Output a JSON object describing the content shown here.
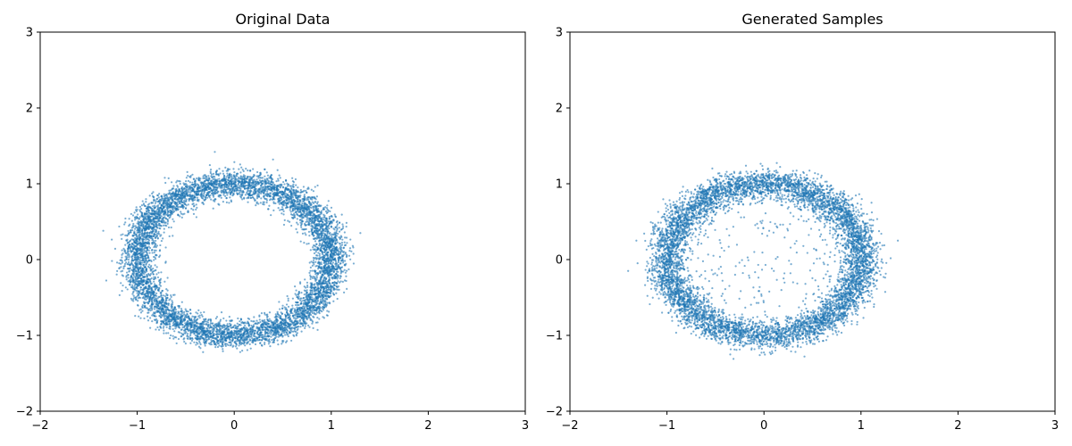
{
  "chart_data": [
    {
      "type": "scatter",
      "title": "Original Data",
      "xlabel": "",
      "ylabel": "",
      "xlim": [
        -2,
        3
      ],
      "ylim": [
        -2,
        3
      ],
      "xticks": [
        "−2",
        "−1",
        "0",
        "1",
        "2",
        "3"
      ],
      "yticks": [
        "−2",
        "−1",
        "0",
        "1",
        "2",
        "3"
      ],
      "grid": false,
      "point_color": "#1f77b4",
      "distribution": {
        "shape": "ring",
        "center": [
          0.0,
          0.0
        ],
        "radius_x": 1.0,
        "radius_y": 1.0,
        "spread": 0.09,
        "outlier_fraction": 0.0
      },
      "sample_points": [
        [
          1.0,
          0.0
        ],
        [
          0.71,
          0.71
        ],
        [
          0.0,
          1.0
        ],
        [
          -0.71,
          0.71
        ],
        [
          -1.0,
          0.0
        ],
        [
          -0.71,
          -0.71
        ],
        [
          0.0,
          -1.0
        ],
        [
          0.71,
          -0.71
        ],
        [
          -0.2,
          1.42
        ],
        [
          0.4,
          1.32
        ],
        [
          1.3,
          0.35
        ],
        [
          -1.35,
          0.38
        ]
      ]
    },
    {
      "type": "scatter",
      "title": "Generated Samples",
      "xlabel": "",
      "ylabel": "",
      "xlim": [
        -2,
        3
      ],
      "ylim": [
        -2,
        3
      ],
      "xticks": [
        "−2",
        "−1",
        "0",
        "1",
        "2",
        "3"
      ],
      "yticks": [
        "−2",
        "−1",
        "0",
        "1",
        "2",
        "3"
      ],
      "grid": false,
      "point_color": "#1f77b4",
      "distribution": {
        "shape": "ring",
        "center": [
          0.0,
          0.0
        ],
        "radius_x": 1.0,
        "radius_y": 1.0,
        "spread": 0.1,
        "outlier_fraction": 0.03
      },
      "sample_points": [
        [
          1.0,
          0.0
        ],
        [
          0.71,
          0.71
        ],
        [
          0.0,
          1.0
        ],
        [
          -0.71,
          0.71
        ],
        [
          -1.0,
          0.0
        ],
        [
          -0.71,
          -0.71
        ],
        [
          0.0,
          -1.0
        ],
        [
          0.71,
          -0.71
        ],
        [
          -1.4,
          -0.15
        ],
        [
          1.38,
          0.25
        ],
        [
          -0.1,
          0.1
        ],
        [
          0.3,
          -0.3
        ]
      ]
    }
  ]
}
